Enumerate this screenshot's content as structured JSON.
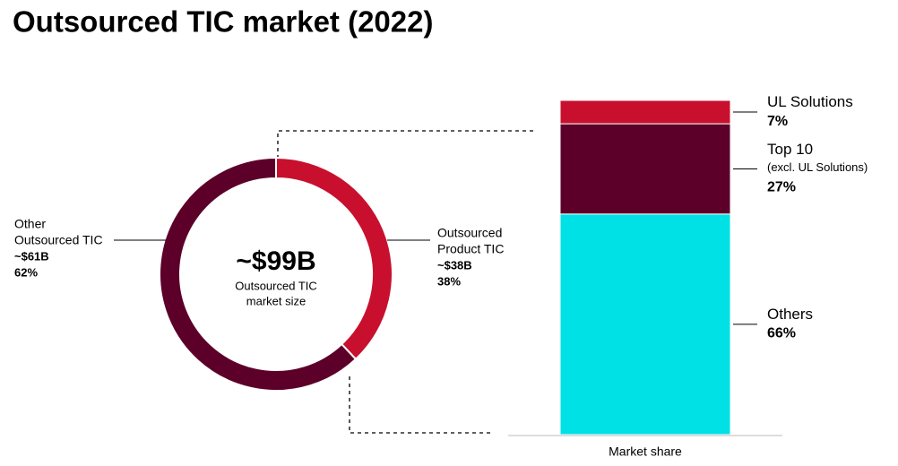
{
  "title": "Outsourced TIC market (2022)",
  "chart_data": [
    {
      "type": "donut",
      "center_value": "~$99B",
      "center_label": [
        "Outsourced TIC",
        "market size"
      ],
      "categories": [
        [
          "Outsourced",
          "Product TIC"
        ],
        [
          "Other",
          "Outsourced TIC"
        ]
      ],
      "amount_labels": [
        "~$38B",
        "~$61B"
      ],
      "values": [
        38,
        62
      ],
      "value_labels": [
        "38%",
        "62%"
      ],
      "colors": [
        "#c8102e",
        "#5c0029"
      ]
    },
    {
      "type": "stacked_bar",
      "x_label": "Market share",
      "ylim": [
        0,
        100
      ],
      "series": [
        {
          "name": "UL Solutions",
          "color": "#c8102e",
          "values": [
            7
          ],
          "value_labels": [
            "7%"
          ]
        },
        {
          "name": "Top 10",
          "note": "(excl. UL Solutions)",
          "color": "#5c0029",
          "values": [
            27
          ],
          "value_labels": [
            "27%"
          ]
        },
        {
          "name": "Others",
          "color": "#00e1e6",
          "values": [
            66
          ],
          "value_labels": [
            "66%"
          ]
        }
      ]
    }
  ]
}
